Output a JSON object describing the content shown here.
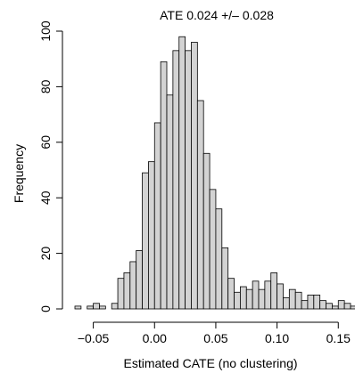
{
  "chart_data": {
    "type": "bar",
    "title": "ATE 0.024 +/– 0.028",
    "xlabel": "Estimated CATE (no clustering)",
    "ylabel": "Frequency",
    "xlim": [
      -0.065,
      0.16
    ],
    "ylim": [
      0,
      100
    ],
    "xticks": [
      -0.05,
      0.0,
      0.05,
      0.1,
      0.15
    ],
    "xtick_labels": [
      "−0.05",
      "0.00",
      "0.05",
      "0.10",
      "0.15"
    ],
    "yticks": [
      0,
      20,
      40,
      60,
      80,
      100
    ],
    "ytick_labels": [
      "0",
      "20",
      "40",
      "60",
      "80",
      "100"
    ],
    "bin_width": 0.005,
    "bins_start": -0.065,
    "values": [
      1,
      0,
      1,
      2,
      1,
      0,
      2,
      11,
      13,
      17,
      21,
      49,
      53,
      67,
      89,
      77,
      93,
      98,
      93,
      96,
      75,
      56,
      43,
      36,
      22,
      11,
      6,
      8,
      7,
      10,
      7,
      10,
      13,
      9,
      4,
      7,
      6,
      3,
      5,
      5,
      3,
      2,
      1,
      3,
      2,
      1,
      1,
      2
    ],
    "grid": false,
    "legend": "none"
  }
}
